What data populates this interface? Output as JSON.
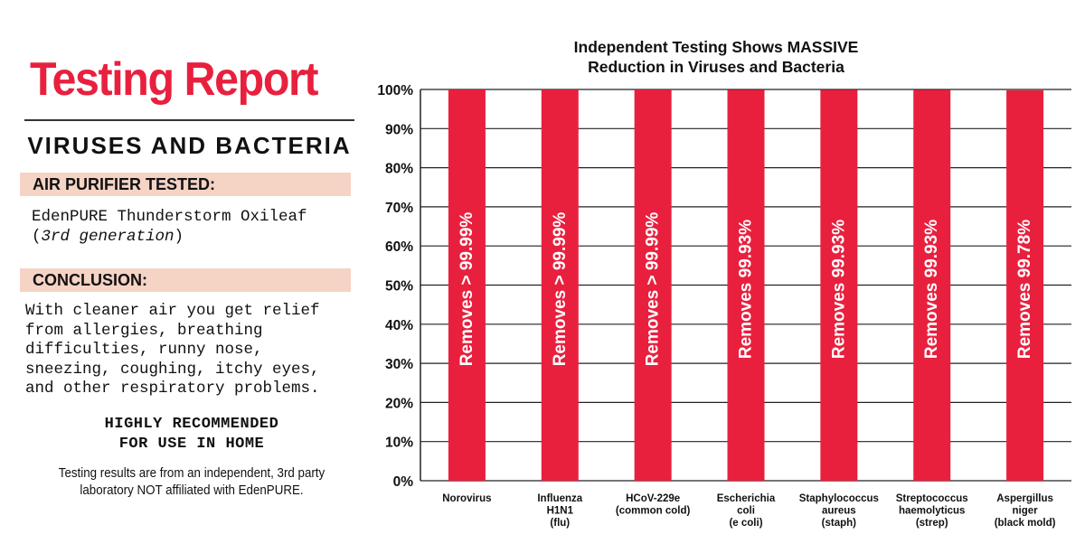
{
  "report": {
    "title": "Testing Report",
    "subtitle": "VIRUSES AND BACTERIA",
    "section_tested": "AIR PURIFIER TESTED:",
    "product_name": "EdenPURE Thunderstorm Oxileaf",
    "product_generation_open": "(",
    "product_generation": "3rd generation",
    "product_generation_close": ")",
    "section_conclusion": "CONCLUSION:",
    "conclusion_lines": [
      "With cleaner air you get relief",
      "from allergies, breathing",
      "difficulties, runny nose,",
      "sneezing, coughing, itchy eyes,",
      "and other respiratory problems."
    ],
    "recommend_lines": [
      "HIGHLY RECOMMENDED",
      "FOR USE IN HOME"
    ],
    "footnote_lines": [
      "Testing results are from an independent, 3rd party",
      "laboratory NOT affiliated with EdenPURE."
    ]
  },
  "colors": {
    "accent": "#e8203e",
    "band": "#f5d3c5",
    "text": "#111111"
  },
  "chart_data": {
    "type": "bar",
    "title_lines": [
      "Independent Testing Shows MASSIVE",
      "Reduction in Viruses and Bacteria"
    ],
    "categories": [
      [
        "Norovirus"
      ],
      [
        "Influenza",
        "H1N1",
        "(flu)"
      ],
      [
        "HCoV-229e",
        "(common cold)"
      ],
      [
        "Escherichia",
        "coli",
        "(e coli)"
      ],
      [
        "Staphylococcus",
        "aureus",
        "(staph)"
      ],
      [
        "Streptococcus",
        "haemolyticus",
        "(strep)"
      ],
      [
        "Aspergillus",
        "niger",
        "(black mold)"
      ]
    ],
    "values": [
      99.99,
      99.99,
      99.99,
      99.93,
      99.93,
      99.93,
      99.78
    ],
    "data_labels": [
      "Removes > 99.99%",
      "Removes > 99.99%",
      "Removes > 99.99%",
      "Removes 99.93%",
      "Removes 99.93%",
      "Removes 99.93%",
      "Removes 99.78%"
    ],
    "ylim": [
      0,
      100
    ],
    "yticks": [
      "0%",
      "10%",
      "20%",
      "30%",
      "40%",
      "50%",
      "60%",
      "70%",
      "80%",
      "90%",
      "100%"
    ],
    "grid": true,
    "bar_color": "#e8203e"
  }
}
